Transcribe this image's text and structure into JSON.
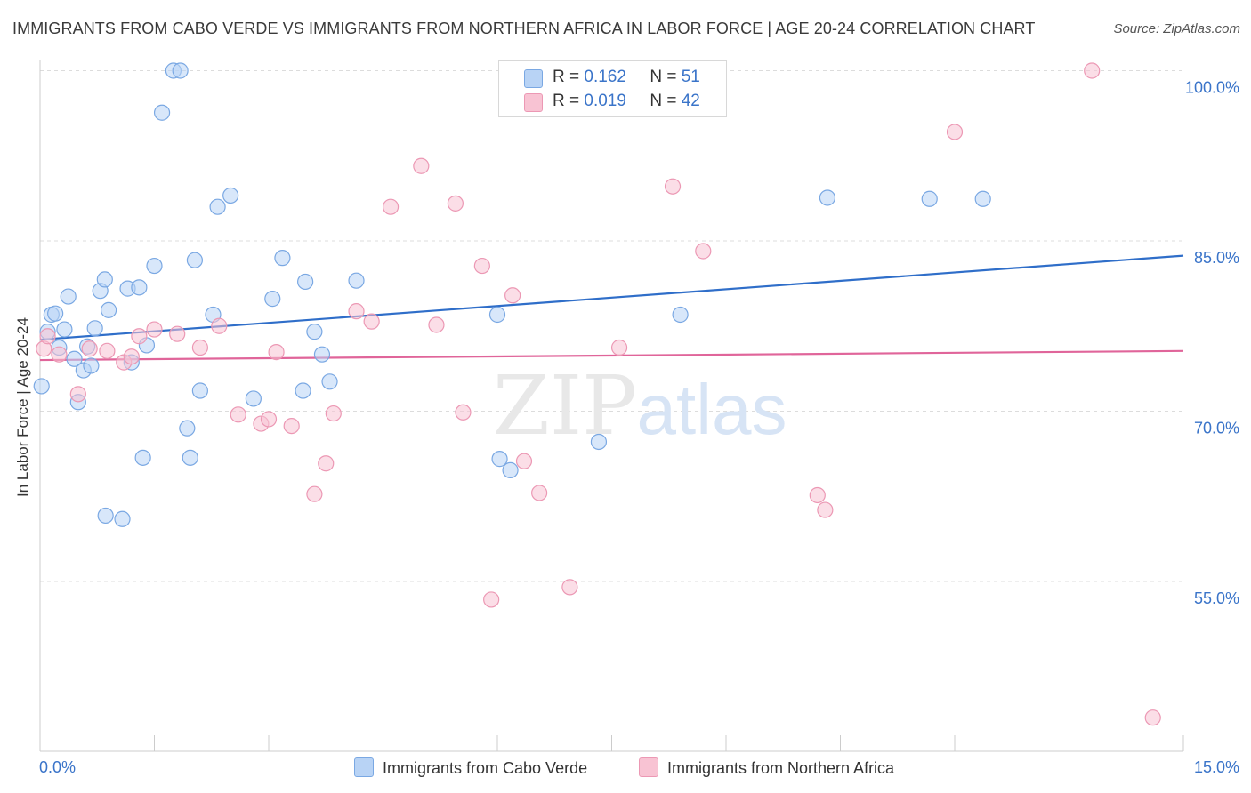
{
  "title": "IMMIGRANTS FROM CABO VERDE VS IMMIGRANTS FROM NORTHERN AFRICA IN LABOR FORCE | AGE 20-24 CORRELATION CHART",
  "source": "Source: ZipAtlas.com",
  "watermark": {
    "zip": "ZIP",
    "atlas": "atlas"
  },
  "legend_top": [
    {
      "r_label": "R =",
      "r_value": "0.162",
      "n_label": "N =",
      "n_value": "51"
    },
    {
      "r_label": "R =",
      "r_value": "0.019",
      "n_label": "N =",
      "n_value": "42"
    }
  ],
  "colors": {
    "blue_fill": "#b8d3f5",
    "blue_stroke": "#7aa8e3",
    "blue_line": "#2f6ec9",
    "pink_fill": "#f8c3d3",
    "pink_stroke": "#ec98b4",
    "pink_line": "#e0659a",
    "tick_label": "#3a74c9",
    "grid": "#dcdcdc"
  },
  "chart_data": {
    "type": "scatter",
    "title": "IMMIGRANTS FROM CABO VERDE VS IMMIGRANTS FROM NORTHERN AFRICA IN LABOR FORCE | AGE 20-24 CORRELATION CHART",
    "xlabel": "",
    "ylabel": "In Labor Force | Age 20-24",
    "xlim": [
      0,
      15
    ],
    "ylim": [
      40,
      103
    ],
    "x_tick_labels": [
      {
        "value": 0,
        "label": "0.0%"
      },
      {
        "value": 15,
        "label": "15.0%"
      }
    ],
    "y_ticks": [
      {
        "value": 55,
        "label": "55.0%"
      },
      {
        "value": 70,
        "label": "70.0%"
      },
      {
        "value": 85,
        "label": "85.0%"
      },
      {
        "value": 100,
        "label": "100.0%"
      }
    ],
    "grid": true,
    "legend_placement": "bottom-center",
    "series": [
      {
        "name": "Immigrants from Cabo Verde",
        "color": "#b8d3f5",
        "trend": {
          "x": [
            0,
            15
          ],
          "y": [
            76.3,
            83.7
          ]
        },
        "points": [
          [
            0.02,
            72.2
          ],
          [
            0.1,
            77.0
          ],
          [
            0.15,
            78.5
          ],
          [
            0.2,
            78.6
          ],
          [
            0.25,
            75.6
          ],
          [
            0.32,
            77.2
          ],
          [
            0.37,
            80.1
          ],
          [
            0.45,
            74.6
          ],
          [
            0.5,
            70.8
          ],
          [
            0.57,
            73.6
          ],
          [
            0.62,
            75.7
          ],
          [
            0.67,
            74.0
          ],
          [
            0.72,
            77.3
          ],
          [
            0.79,
            80.6
          ],
          [
            0.85,
            81.6
          ],
          [
            0.9,
            78.9
          ],
          [
            0.86,
            60.8
          ],
          [
            1.08,
            60.5
          ],
          [
            1.15,
            80.8
          ],
          [
            1.2,
            74.3
          ],
          [
            1.3,
            80.9
          ],
          [
            1.35,
            65.9
          ],
          [
            1.4,
            75.8
          ],
          [
            1.5,
            82.8
          ],
          [
            1.6,
            96.3
          ],
          [
            1.75,
            100.0
          ],
          [
            1.84,
            100.0
          ],
          [
            1.93,
            68.5
          ],
          [
            1.97,
            65.9
          ],
          [
            2.03,
            83.3
          ],
          [
            2.1,
            71.8
          ],
          [
            2.27,
            78.5
          ],
          [
            2.33,
            88.0
          ],
          [
            2.5,
            89.0
          ],
          [
            2.8,
            71.1
          ],
          [
            3.05,
            79.9
          ],
          [
            3.18,
            83.5
          ],
          [
            3.45,
            71.8
          ],
          [
            3.48,
            81.4
          ],
          [
            3.6,
            77.0
          ],
          [
            3.7,
            75.0
          ],
          [
            3.8,
            72.6
          ],
          [
            4.15,
            81.5
          ],
          [
            6.0,
            78.5
          ],
          [
            6.03,
            65.8
          ],
          [
            6.17,
            64.8
          ],
          [
            7.33,
            67.3
          ],
          [
            8.4,
            78.5
          ],
          [
            10.33,
            88.8
          ],
          [
            11.67,
            88.7
          ],
          [
            12.37,
            88.7
          ]
        ]
      },
      {
        "name": "Immigrants from Northern Africa",
        "color": "#f8c3d3",
        "trend": {
          "x": [
            0,
            15
          ],
          "y": [
            74.5,
            75.3
          ]
        },
        "points": [
          [
            0.05,
            75.5
          ],
          [
            0.1,
            76.6
          ],
          [
            0.25,
            75.0
          ],
          [
            0.5,
            71.5
          ],
          [
            0.65,
            75.5
          ],
          [
            0.88,
            75.3
          ],
          [
            1.1,
            74.3
          ],
          [
            1.2,
            74.8
          ],
          [
            1.3,
            76.6
          ],
          [
            1.5,
            77.2
          ],
          [
            1.8,
            76.8
          ],
          [
            2.1,
            75.6
          ],
          [
            2.35,
            77.5
          ],
          [
            2.6,
            69.7
          ],
          [
            2.9,
            68.9
          ],
          [
            3.0,
            69.3
          ],
          [
            3.1,
            75.2
          ],
          [
            3.3,
            68.7
          ],
          [
            3.6,
            62.7
          ],
          [
            3.75,
            65.4
          ],
          [
            3.85,
            69.8
          ],
          [
            4.15,
            78.8
          ],
          [
            4.35,
            77.9
          ],
          [
            4.6,
            88.0
          ],
          [
            5.0,
            91.6
          ],
          [
            5.2,
            77.6
          ],
          [
            5.45,
            88.3
          ],
          [
            5.55,
            69.9
          ],
          [
            5.8,
            82.8
          ],
          [
            5.92,
            53.4
          ],
          [
            6.2,
            80.2
          ],
          [
            6.35,
            65.6
          ],
          [
            6.55,
            62.8
          ],
          [
            6.95,
            54.5
          ],
          [
            7.05,
            100.0
          ],
          [
            7.6,
            75.6
          ],
          [
            8.3,
            89.8
          ],
          [
            8.7,
            84.1
          ],
          [
            10.2,
            62.6
          ],
          [
            10.3,
            61.3
          ],
          [
            12.0,
            94.6
          ],
          [
            13.8,
            100.0
          ],
          [
            14.6,
            43.0
          ]
        ]
      }
    ]
  }
}
